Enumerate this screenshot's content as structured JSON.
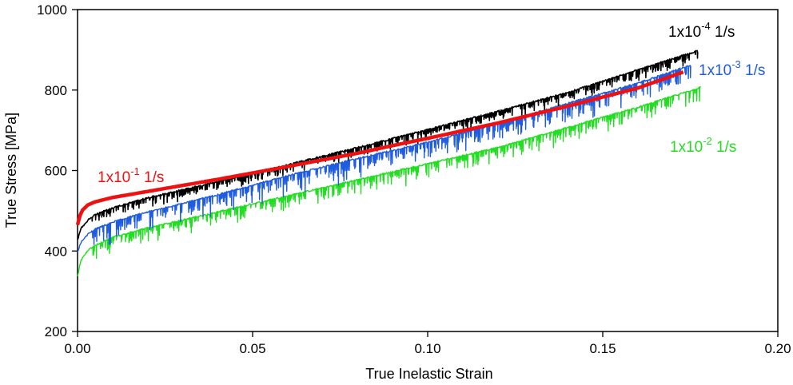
{
  "chart_data": {
    "type": "line",
    "xlabel": "True Inelastic Strain",
    "ylabel": "True Stress [MPa]",
    "xlim": [
      0,
      0.2
    ],
    "ylim": [
      200,
      1000
    ],
    "xticks": [
      0.0,
      0.05,
      0.1,
      0.15,
      0.2
    ],
    "xtick_labels": [
      "0.00",
      "0.05",
      "0.10",
      "0.15",
      "0.20"
    ],
    "yticks": [
      200,
      400,
      600,
      800,
      1000
    ],
    "ytick_labels": [
      "200",
      "400",
      "600",
      "800",
      "1000"
    ],
    "grid": false,
    "legend": "none",
    "series": [
      {
        "name": "1x10-4 1/s",
        "label_base": "1x10",
        "label_exp": "-4",
        "label_unit": " 1/s",
        "color": "#000000",
        "serrated": true,
        "x": [
          0.0,
          0.001,
          0.003,
          0.005,
          0.01,
          0.02,
          0.04,
          0.06,
          0.08,
          0.1,
          0.12,
          0.14,
          0.16,
          0.177
        ],
        "y": [
          425,
          455,
          475,
          488,
          505,
          530,
          570,
          612,
          655,
          700,
          745,
          792,
          848,
          895
        ]
      },
      {
        "name": "1x10-3 1/s",
        "label_base": "1x10",
        "label_exp": "-3",
        "label_unit": " 1/s",
        "color": "#1f5ce0",
        "serrated": true,
        "x": [
          0.0,
          0.001,
          0.003,
          0.005,
          0.01,
          0.02,
          0.04,
          0.06,
          0.08,
          0.1,
          0.12,
          0.14,
          0.16,
          0.175
        ],
        "y": [
          395,
          420,
          440,
          452,
          470,
          495,
          538,
          585,
          628,
          668,
          715,
          765,
          815,
          860
        ]
      },
      {
        "name": "1x10-2 1/s",
        "label_base": "1x10",
        "label_exp": "-2",
        "label_unit": " 1/s",
        "color": "#22dd22",
        "serrated": true,
        "x": [
          0.0,
          0.001,
          0.003,
          0.005,
          0.01,
          0.02,
          0.04,
          0.06,
          0.08,
          0.1,
          0.12,
          0.14,
          0.16,
          0.178
        ],
        "y": [
          335,
          375,
          400,
          412,
          432,
          455,
          495,
          535,
          575,
          615,
          655,
          705,
          755,
          805
        ]
      },
      {
        "name": "1x10-1 1/s",
        "label_base": "1x10",
        "label_exp": "-1",
        "label_unit": " 1/s",
        "color": "#ee1111",
        "serrated": false,
        "x": [
          0.0,
          0.001,
          0.003,
          0.005,
          0.01,
          0.02,
          0.04,
          0.06,
          0.08,
          0.09,
          0.1,
          0.12,
          0.14,
          0.16,
          0.173
        ],
        "y": [
          465,
          498,
          515,
          522,
          533,
          548,
          578,
          610,
          643,
          662,
          680,
          718,
          760,
          805,
          845
        ]
      }
    ]
  }
}
